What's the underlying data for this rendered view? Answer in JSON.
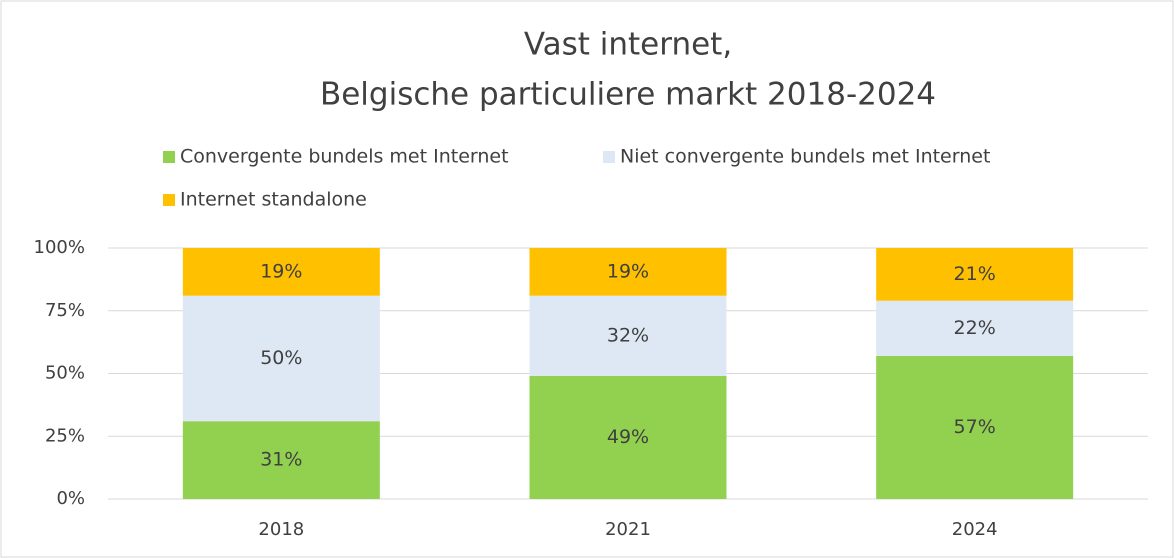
{
  "chart_data": {
    "type": "stacked_bar",
    "title": [
      "Vast internet,",
      "Belgische particuliere markt 2018-2024"
    ],
    "categories": [
      "2018",
      "2021",
      "2024"
    ],
    "series": [
      {
        "name": "Convergente bundels met Internet",
        "color": "#92d050",
        "values": [
          31,
          49,
          57
        ],
        "value_labels": [
          "31%",
          "49%",
          "57%"
        ]
      },
      {
        "name": "Niet convergente bundels met Internet",
        "color": "#dde8f4",
        "values": [
          50,
          32,
          22
        ],
        "value_labels": [
          "50%",
          "32%",
          "22%"
        ]
      },
      {
        "name": "Internet standalone",
        "color": "#ffc000",
        "values": [
          19,
          19,
          21
        ],
        "value_labels": [
          "19%",
          "19%",
          "21%"
        ]
      }
    ],
    "ylim": [
      0,
      100
    ],
    "yticks": [
      {
        "value": 0,
        "label": "0%"
      },
      {
        "value": 25,
        "label": "25%"
      },
      {
        "value": 50,
        "label": "50%"
      },
      {
        "value": 75,
        "label": "75%"
      },
      {
        "value": 100,
        "label": "100%"
      }
    ],
    "grid": true,
    "legend": "top"
  }
}
